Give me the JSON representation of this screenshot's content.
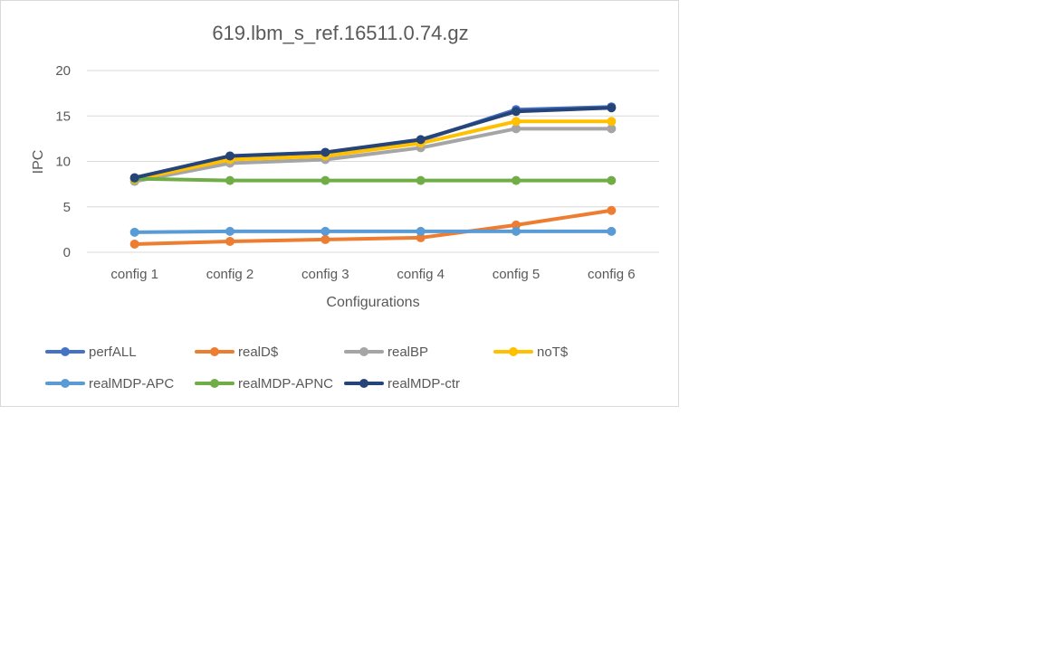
{
  "chart_data": {
    "type": "line",
    "title": "619.lbm_s_ref.16511.0.74.gz",
    "xlabel": "Configurations",
    "ylabel": "IPC",
    "categories": [
      "config 1",
      "config 2",
      "config 3",
      "config 4",
      "config 5",
      "config 6"
    ],
    "ylim": [
      0,
      20
    ],
    "yticks": [
      0,
      5,
      10,
      15,
      20
    ],
    "grid": true,
    "legend_position": "bottom",
    "series": [
      {
        "name": "perfALL",
        "color": "#4472C4",
        "values": [
          8.2,
          10.5,
          10.9,
          12.3,
          15.7,
          16.0
        ]
      },
      {
        "name": "realD$",
        "color": "#ED7D31",
        "values": [
          0.9,
          1.2,
          1.4,
          1.6,
          3.0,
          4.6
        ]
      },
      {
        "name": "realBP",
        "color": "#A5A5A5",
        "values": [
          7.8,
          9.8,
          10.2,
          11.5,
          13.6,
          13.6
        ]
      },
      {
        "name": "noT$",
        "color": "#FFC000",
        "values": [
          8.0,
          10.2,
          10.6,
          12.0,
          14.4,
          14.4
        ]
      },
      {
        "name": "realMDP-APC",
        "color": "#5B9BD5",
        "values": [
          2.2,
          2.3,
          2.3,
          2.3,
          2.3,
          2.3
        ]
      },
      {
        "name": "realMDP-APNC",
        "color": "#70AD47",
        "values": [
          8.1,
          7.9,
          7.9,
          7.9,
          7.9,
          7.9
        ]
      },
      {
        "name": "realMDP-ctr",
        "color": "#264478",
        "values": [
          8.2,
          10.6,
          11.0,
          12.4,
          15.5,
          15.9
        ]
      }
    ]
  }
}
